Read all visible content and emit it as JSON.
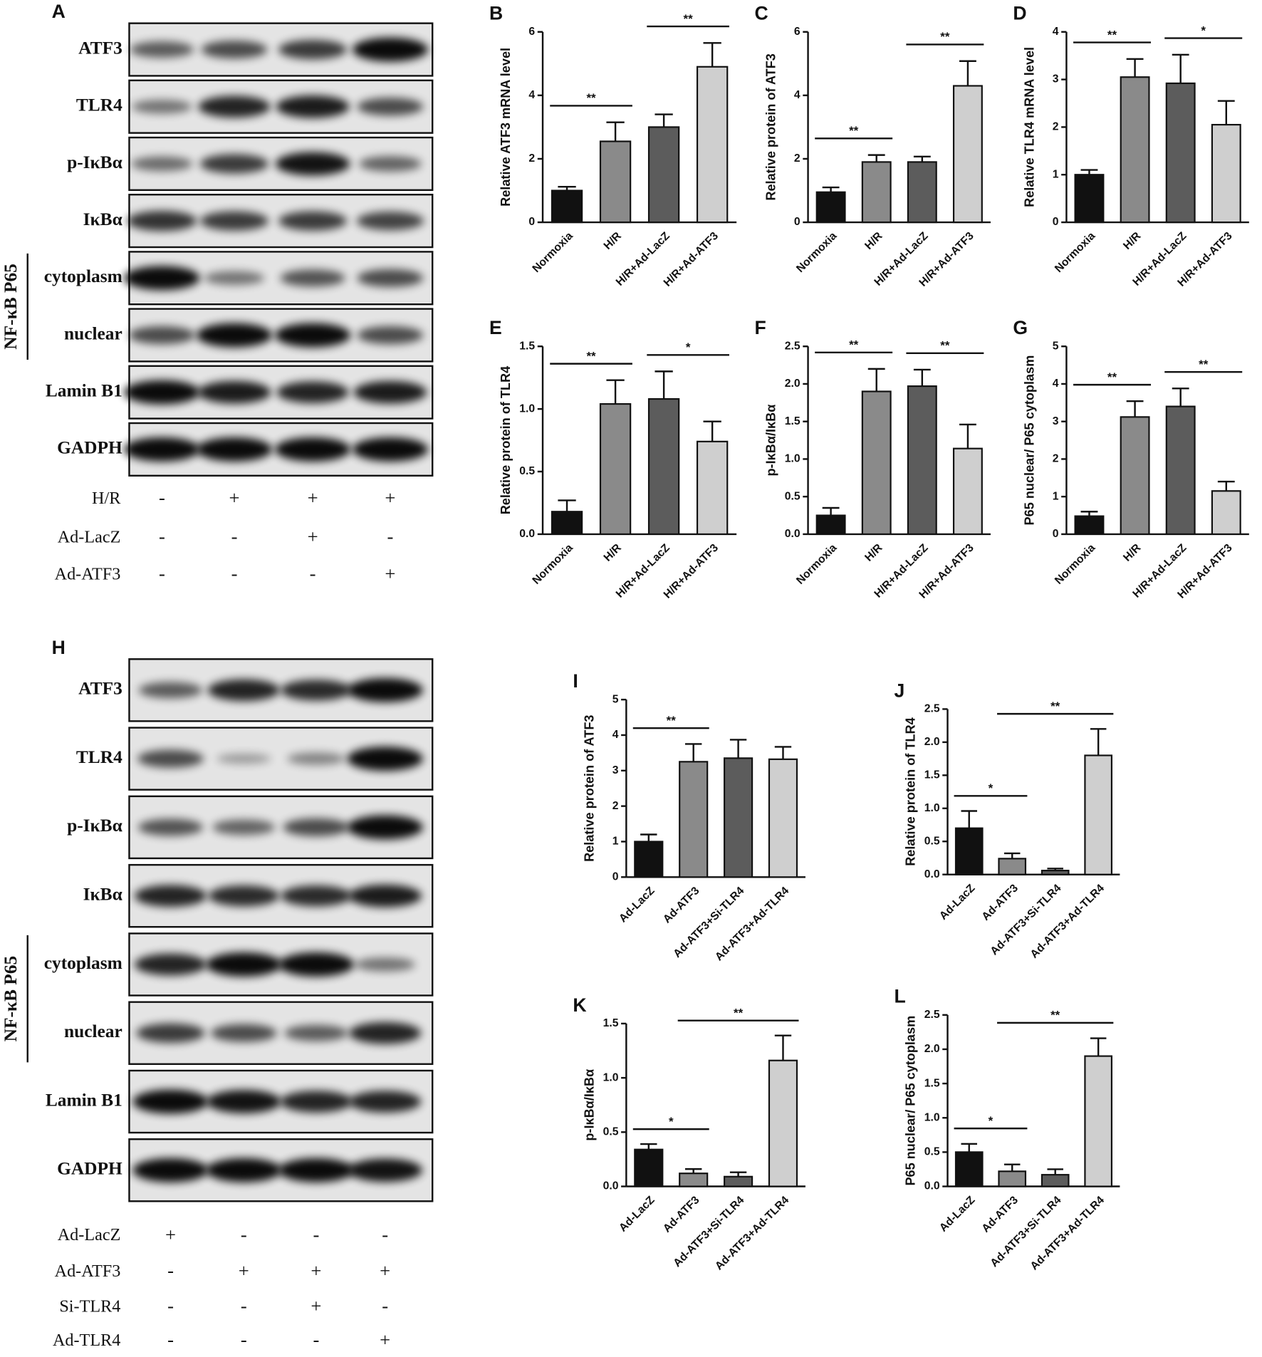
{
  "chart_data": [
    {
      "type": "bar",
      "panel": "B",
      "ylabel": "Relative ATF3 mRNA level",
      "categories": [
        "Normoxia",
        "H/R",
        "H/R+Ad-LacZ",
        "H/R+Ad-ATF3"
      ],
      "values": [
        1.0,
        2.55,
        3.0,
        4.9
      ],
      "errors": [
        0.12,
        0.6,
        0.4,
        0.75
      ],
      "colors": [
        "#111111",
        "#8a8a8a",
        "#5c5c5c",
        "#cfcfcf"
      ],
      "ylim": [
        0,
        6
      ],
      "yticks": [
        0,
        2,
        4,
        6
      ],
      "comparisons": [
        {
          "label": "**",
          "from": "Normoxia",
          "to": "H/R"
        },
        {
          "label": "**",
          "from": "H/R+Ad-LacZ",
          "to": "H/R+Ad-ATF3"
        }
      ]
    },
    {
      "type": "bar",
      "panel": "C",
      "ylabel": "Relative protein of ATF3",
      "categories": [
        "Normoxia",
        "H/R",
        "H/R+Ad-LacZ",
        "H/R+Ad-ATF3"
      ],
      "values": [
        0.95,
        1.9,
        1.9,
        4.3
      ],
      "errors": [
        0.15,
        0.22,
        0.17,
        0.78
      ],
      "colors": [
        "#111111",
        "#8a8a8a",
        "#5c5c5c",
        "#cfcfcf"
      ],
      "ylim": [
        0,
        6
      ],
      "yticks": [
        0,
        2,
        4,
        6
      ],
      "comparisons": [
        {
          "label": "**",
          "from": "Normoxia",
          "to": "H/R"
        },
        {
          "label": "**",
          "from": "H/R+Ad-LacZ",
          "to": "H/R+Ad-ATF3"
        }
      ]
    },
    {
      "type": "bar",
      "panel": "D",
      "ylabel": "Relative TLR4 mRNA level",
      "categories": [
        "Normoxia",
        "H/R",
        "H/R+Ad-LacZ",
        "H/R+Ad-ATF3"
      ],
      "values": [
        1.0,
        3.05,
        2.92,
        2.05
      ],
      "errors": [
        0.1,
        0.38,
        0.6,
        0.5
      ],
      "colors": [
        "#111111",
        "#8a8a8a",
        "#5c5c5c",
        "#cfcfcf"
      ],
      "ylim": [
        0,
        4
      ],
      "yticks": [
        0,
        1,
        2,
        3,
        4
      ],
      "comparisons": [
        {
          "label": "**",
          "from": "Normoxia",
          "to": "H/R"
        },
        {
          "label": "*",
          "from": "H/R+Ad-LacZ",
          "to": "H/R+Ad-ATF3"
        }
      ]
    },
    {
      "type": "bar",
      "panel": "E",
      "ylabel": "Relative protein of TLR4",
      "categories": [
        "Normoxia",
        "H/R",
        "H/R+Ad-LacZ",
        "H/R+Ad-ATF3"
      ],
      "values": [
        0.18,
        1.04,
        1.08,
        0.74
      ],
      "errors": [
        0.09,
        0.19,
        0.22,
        0.16
      ],
      "colors": [
        "#111111",
        "#8a8a8a",
        "#5c5c5c",
        "#cfcfcf"
      ],
      "ylim": [
        0,
        1.5
      ],
      "yticks": [
        {
          "value": 0,
          "label": "0.0"
        },
        0.5,
        {
          "value": 1,
          "label": "1.0"
        },
        1.5
      ],
      "comparisons": [
        {
          "label": "**",
          "from": "Normoxia",
          "to": "H/R"
        },
        {
          "label": "*",
          "from": "H/R+Ad-LacZ",
          "to": "H/R+Ad-ATF3"
        }
      ]
    },
    {
      "type": "bar",
      "panel": "F",
      "ylabel": "p-IκBα/IκBα",
      "categories": [
        "Normoxia",
        "H/R",
        "H/R+Ad-LacZ",
        "H/R+Ad-ATF3"
      ],
      "values": [
        0.25,
        1.9,
        1.97,
        1.14
      ],
      "errors": [
        0.1,
        0.3,
        0.22,
        0.32
      ],
      "colors": [
        "#111111",
        "#8a8a8a",
        "#5c5c5c",
        "#cfcfcf"
      ],
      "ylim": [
        0,
        2.5
      ],
      "yticks": [
        {
          "value": 0,
          "label": "0.0"
        },
        0.5,
        {
          "value": 1,
          "label": "1.0"
        },
        1.5,
        {
          "value": 2,
          "label": "2.0"
        },
        2.5
      ],
      "comparisons": [
        {
          "label": "**",
          "from": "Normoxia",
          "to": "H/R"
        },
        {
          "label": "**",
          "from": "H/R+Ad-LacZ",
          "to": "H/R+Ad-ATF3"
        }
      ]
    },
    {
      "type": "bar",
      "panel": "G",
      "ylabel": "P65 nuclear/ P65 cytoplasm",
      "categories": [
        "Normoxia",
        "H/R",
        "H/R+Ad-LacZ",
        "H/R+Ad-ATF3"
      ],
      "values": [
        0.48,
        3.12,
        3.4,
        1.15
      ],
      "errors": [
        0.12,
        0.42,
        0.48,
        0.25
      ],
      "colors": [
        "#111111",
        "#8a8a8a",
        "#5c5c5c",
        "#cfcfcf"
      ],
      "ylim": [
        0,
        5
      ],
      "yticks": [
        0,
        1,
        2,
        3,
        4,
        5
      ],
      "comparisons": [
        {
          "label": "**",
          "from": "Normoxia",
          "to": "H/R"
        },
        {
          "label": "**",
          "from": "H/R+Ad-LacZ",
          "to": "H/R+Ad-ATF3"
        }
      ]
    },
    {
      "type": "bar",
      "panel": "I",
      "ylabel": "Relative protein of ATF3",
      "categories": [
        "Ad-LacZ",
        "Ad-ATF3",
        "Ad-ATF3+Si-TLR4",
        "Ad-ATF3+Ad-TLR4"
      ],
      "values": [
        1.0,
        3.25,
        3.35,
        3.32
      ],
      "errors": [
        0.2,
        0.5,
        0.52,
        0.35
      ],
      "colors": [
        "#111111",
        "#8a8a8a",
        "#5c5c5c",
        "#cfcfcf"
      ],
      "ylim": [
        0,
        5
      ],
      "yticks": [
        0,
        1,
        2,
        3,
        4,
        5
      ],
      "comparisons": [
        {
          "label": "**",
          "from": "Ad-LacZ",
          "to": "Ad-ATF3"
        }
      ]
    },
    {
      "type": "bar",
      "panel": "J",
      "ylabel": "Relative protein of TLR4",
      "categories": [
        "Ad-LacZ",
        "Ad-ATF3",
        "Ad-ATF3+Si-TLR4",
        "Ad-ATF3+Ad-TLR4"
      ],
      "values": [
        0.7,
        0.24,
        0.06,
        1.8
      ],
      "errors": [
        0.26,
        0.08,
        0.03,
        0.4
      ],
      "colors": [
        "#111111",
        "#8a8a8a",
        "#5c5c5c",
        "#cfcfcf"
      ],
      "ylim": [
        0,
        2.5
      ],
      "yticks": [
        {
          "value": 0,
          "label": "0.0"
        },
        0.5,
        {
          "value": 1,
          "label": "1.0"
        },
        1.5,
        {
          "value": 2,
          "label": "2.0"
        },
        2.5
      ],
      "comparisons": [
        {
          "label": "*",
          "from": "Ad-LacZ",
          "to": "Ad-ATF3"
        },
        {
          "label": "**",
          "from": "Ad-ATF3",
          "to": "Ad-ATF3+Ad-TLR4"
        }
      ]
    },
    {
      "type": "bar",
      "panel": "K",
      "ylabel": "p-IκBα/IκBα",
      "categories": [
        "Ad-LacZ",
        "Ad-ATF3",
        "Ad-ATF3+Si-TLR4",
        "Ad-ATF3+Ad-TLR4"
      ],
      "values": [
        0.34,
        0.12,
        0.09,
        1.16
      ],
      "errors": [
        0.05,
        0.04,
        0.04,
        0.23
      ],
      "colors": [
        "#111111",
        "#8a8a8a",
        "#5c5c5c",
        "#cfcfcf"
      ],
      "ylim": [
        0,
        1.5
      ],
      "yticks": [
        {
          "value": 0,
          "label": "0.0"
        },
        0.5,
        {
          "value": 1,
          "label": "1.0"
        },
        1.5
      ],
      "comparisons": [
        {
          "label": "*",
          "from": "Ad-LacZ",
          "to": "Ad-ATF3"
        },
        {
          "label": "**",
          "from": "Ad-ATF3",
          "to": "Ad-ATF3+Ad-TLR4"
        }
      ]
    },
    {
      "type": "bar",
      "panel": "L",
      "ylabel": "P65 nuclear/ P65 cytoplasm",
      "categories": [
        "Ad-LacZ",
        "Ad-ATF3",
        "Ad-ATF3+Si-TLR4",
        "Ad-ATF3+Ad-TLR4"
      ],
      "values": [
        0.5,
        0.22,
        0.17,
        1.9
      ],
      "errors": [
        0.12,
        0.1,
        0.08,
        0.26
      ],
      "colors": [
        "#111111",
        "#8a8a8a",
        "#5c5c5c",
        "#cfcfcf"
      ],
      "ylim": [
        0,
        2.5
      ],
      "yticks": [
        {
          "value": 0,
          "label": "0.0"
        },
        0.5,
        {
          "value": 1,
          "label": "1.0"
        },
        1.5,
        {
          "value": 2,
          "label": "2.0"
        },
        2.5
      ],
      "comparisons": [
        {
          "label": "*",
          "from": "Ad-LacZ",
          "to": "Ad-ATF3"
        },
        {
          "label": "**",
          "from": "Ad-ATF3",
          "to": "Ad-ATF3+Ad-TLR4"
        }
      ]
    }
  ],
  "blot_panels": [
    {
      "panel": "A",
      "rows": [
        "ATF3",
        "TLR4",
        "p-IκBα",
        "IκBα",
        "cytoplasm",
        "nuclear",
        "Lamin B1",
        "GADPH"
      ],
      "group_label": "NF-κB P65",
      "group_rows": [
        "cytoplasm",
        "nuclear"
      ],
      "conditions": [
        {
          "name": "H/R",
          "signs": [
            "-",
            "+",
            "+",
            "+"
          ]
        },
        {
          "name": "Ad-LacZ",
          "signs": [
            "-",
            "-",
            "+",
            "-"
          ]
        },
        {
          "name": "Ad-ATF3",
          "signs": [
            "-",
            "-",
            "-",
            "+"
          ]
        }
      ]
    },
    {
      "panel": "H",
      "rows": [
        "ATF3",
        "TLR4",
        "p-IκBα",
        "IκBα",
        "cytoplasm",
        "nuclear",
        "Lamin B1",
        "GADPH"
      ],
      "group_label": "NF-κB P65",
      "group_rows": [
        "cytoplasm",
        "nuclear"
      ],
      "conditions": [
        {
          "name": "Ad-LacZ",
          "signs": [
            "+",
            "-",
            "-",
            "-"
          ]
        },
        {
          "name": "Ad-ATF3",
          "signs": [
            "-",
            "+",
            "+",
            "+"
          ]
        },
        {
          "name": "Si-TLR4",
          "signs": [
            "-",
            "-",
            "+",
            "-"
          ]
        },
        {
          "name": "Ad-TLR4",
          "signs": [
            "-",
            "-",
            "-",
            "+"
          ]
        }
      ]
    }
  ]
}
